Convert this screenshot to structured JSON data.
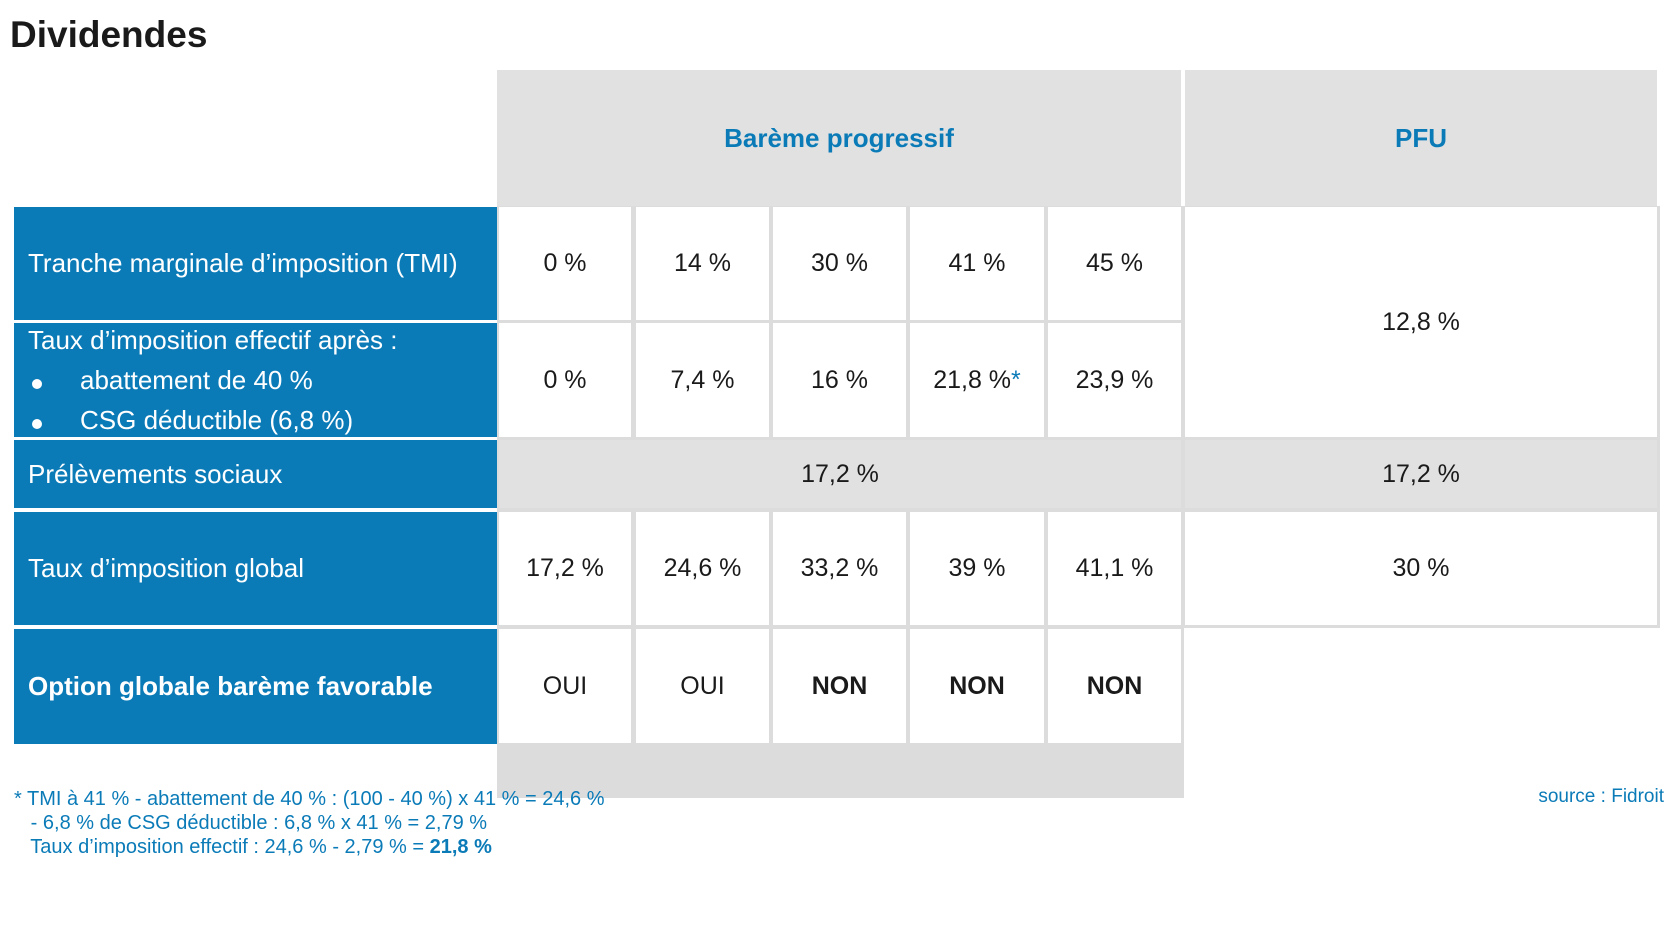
{
  "title": "Dividendes",
  "header": {
    "bareme": "Barème progressif",
    "pfu": "PFU"
  },
  "rows": {
    "tmi": {
      "label": "Tranche marginale d’imposition (TMI)",
      "values": [
        "0 %",
        "14 %",
        "30 %",
        "41 %",
        "45 %"
      ]
    },
    "effectif": {
      "label": "Taux d’imposition effectif après :",
      "bullets": [
        "abattement de 40 %",
        "CSG déductible (6,8 %)"
      ],
      "values": [
        "0 %",
        "7,4 %",
        "16 %",
        "21,8 %",
        "23,9 %"
      ],
      "star": "*"
    },
    "pfu_rate": "12,8 %",
    "sociaux": {
      "label": "Prélèvements sociaux",
      "bareme": "17,2 %",
      "pfu": "17,2 %"
    },
    "global": {
      "label": "Taux d’imposition global",
      "values": [
        "17,2 %",
        "24,6 %",
        "33,2 %",
        "39 %",
        "41,1 %"
      ],
      "pfu": "30 %"
    },
    "option": {
      "label": "Option globale barème favorable",
      "values": [
        "OUI",
        "OUI",
        "NON",
        "NON",
        "NON"
      ]
    }
  },
  "source": "source : Fidroit",
  "footnote": {
    "line1": "* TMI à 41 % - abattement de 40 % : (100 - 40 %) x 41 % = 24,6 %",
    "line2": "   - 6,8 % de CSG déductible : 6,8 % x 41 % = 2,79 %",
    "line3_prefix": "   Taux d’imposition effectif : 24,6 % - 2,79 % = ",
    "line3_bold": "21,8 %"
  },
  "colors": {
    "accent": "#0b7bb8",
    "header_gray": "#e1e1e1",
    "grid": "#dcdcdc"
  }
}
